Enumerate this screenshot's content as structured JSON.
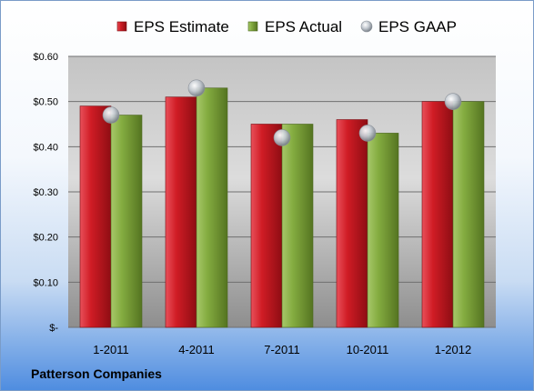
{
  "chart_data": {
    "type": "bar",
    "title": "",
    "xlabel": "",
    "ylabel": "",
    "categories": [
      "1-2011",
      "4-2011",
      "7-2011",
      "10-2011",
      "1-2012"
    ],
    "series": [
      {
        "name": "EPS Estimate",
        "kind": "bar",
        "color": "#c0141c",
        "values": [
          0.49,
          0.51,
          0.45,
          0.46,
          0.5
        ]
      },
      {
        "name": "EPS Actual",
        "kind": "bar",
        "color": "#7aa33a",
        "values": [
          0.47,
          0.53,
          0.45,
          0.43,
          0.5
        ]
      },
      {
        "name": "EPS GAAP",
        "kind": "marker",
        "color": "#b8bec6",
        "values": [
          0.47,
          0.53,
          0.42,
          0.43,
          0.5
        ]
      }
    ],
    "ylim": [
      0,
      0.6
    ],
    "yticks": [
      0,
      0.1,
      0.2,
      0.3,
      0.4,
      0.5,
      0.6
    ],
    "ytick_labels": [
      "$-",
      "$0.10",
      "$0.20",
      "$0.30",
      "$0.40",
      "$0.50",
      "$0.60"
    ],
    "grid": true,
    "legend_position": "top"
  },
  "footer": {
    "company": "Patterson Companies"
  }
}
